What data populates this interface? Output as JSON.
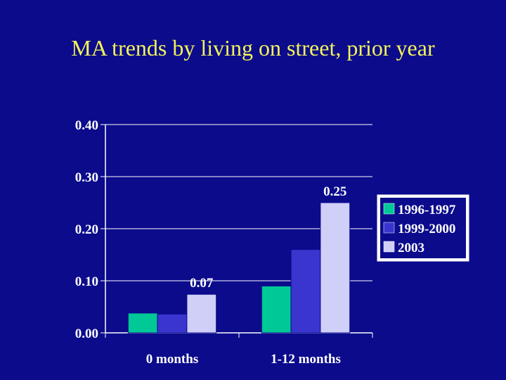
{
  "slide": {
    "title": "MA trends by living on street, prior year"
  },
  "chart_data": {
    "type": "bar",
    "title": "MA trends by living on street, prior year",
    "xlabel": "",
    "ylabel": "",
    "ylim": [
      0,
      0.4
    ],
    "yticks": [
      "0.00",
      "0.10",
      "0.20",
      "0.30",
      "0.40"
    ],
    "ytick_values": [
      0,
      0.1,
      0.2,
      0.3,
      0.4
    ],
    "categories": [
      "0 months",
      "1-12 months"
    ],
    "series": [
      {
        "name": "1996-1997",
        "values": [
          0.038,
          0.09
        ],
        "color": "#00c896"
      },
      {
        "name": "1999-2000",
        "values": [
          0.036,
          0.16
        ],
        "color": "#3a35cf"
      },
      {
        "name": "2003",
        "values": [
          0.074,
          0.25
        ],
        "color": "#cfcff7"
      }
    ],
    "data_labels": [
      {
        "series": 2,
        "category": 0,
        "text": "0.07"
      },
      {
        "series": 2,
        "category": 1,
        "text": "0.25"
      }
    ],
    "legend_position": "right",
    "grid": true
  },
  "colors": {
    "background": "#0b0b8c",
    "title": "#f2f25a",
    "gridline": "#ffffff",
    "legend_bg": "#ffffff",
    "legend_border": "#ffffff"
  }
}
